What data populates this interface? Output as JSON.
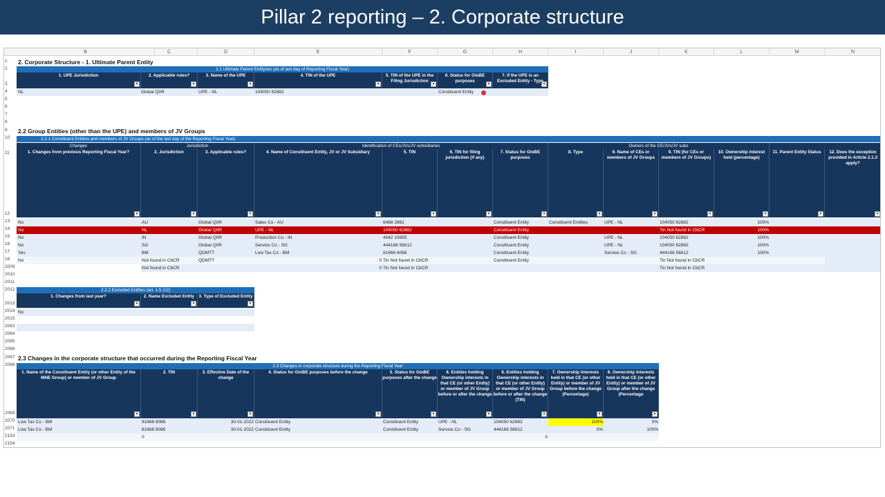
{
  "slide_title": "Pillar 2 reporting – 2. Corporate structure",
  "columns": [
    "B",
    "C",
    "D",
    "E",
    "F",
    "G",
    "H",
    "I",
    "J",
    "K",
    "L",
    "M",
    "N"
  ],
  "rows": [
    "1",
    "2",
    "3",
    "4",
    "5",
    "6",
    "7",
    "8",
    "9",
    "10",
    "11",
    "12",
    "13",
    "14",
    "15",
    "16",
    "17",
    "18",
    "2009",
    "2010",
    "2011",
    "2012",
    "2013",
    "2014",
    "2015",
    "2063",
    "2064",
    "2065",
    "2066",
    "2067",
    "2068",
    "2069",
    "2070",
    "2071",
    "2153",
    "2154"
  ],
  "sec1": {
    "title": "2. Corporate Structure - 1. Ultimate Parent Entity",
    "bar": "2.1 Ultimate Parent Entity/ies (as of last day of Reporting Fiscal Year)",
    "headers": [
      "1. UPE Jurisdiction",
      "2. Applicable rules?",
      "3. Name of the UPE",
      "4. TIN of the UPE",
      "5. TIN of the UPE in the Filing Jurisdiction",
      "6. Status for GloBE purposes",
      "7. If the UPE is an Excluded Entity - Type"
    ],
    "row4": [
      "NL",
      "Global QIIR",
      "UPE - NL",
      "104050 62882",
      "",
      "Constituent Entity",
      ""
    ]
  },
  "sec2": {
    "title": "2.2 Group Entities (other than the UPE) and members of JV Groups",
    "bar": "2.2.1 Constituent Entities and members of JV Groups (as of the last day of the Reporting Fiscal Year)",
    "groups": [
      "Changes",
      "Jurisdiction",
      "Identification of CEs/JVs/JV subsidiaries",
      "Owners of the CE/JVs/JV subs"
    ],
    "headers": [
      "1. Changes from previous Reporting Fiscal Year?",
      "2. Jurisdiction",
      "3. Applicable rules?",
      "4. Name of Constituent Entity, JV or JV Subsidiary",
      "5. TIN",
      "6. TIN for filing jurisdiction (if any)",
      "7. Status for GloBE purposes",
      "8. Type",
      "9. Name of CEs or members of JV Groups",
      "9. TIN (for CEs or members of JV Groups)",
      "10. Ownership interest held (percentage)",
      "11. Parent Entity Status",
      "12. Does the exception provided in Article 2.1.3 apply?"
    ],
    "data": [
      [
        "No",
        "AU",
        "Global QIIR",
        "Sales Co - AU",
        "6468 2862",
        "",
        "Constituent Entity",
        "Constituent Entities",
        "UPE - NL",
        "104050 62882",
        "100%"
      ],
      [
        "No",
        "NL",
        "Global QIIR",
        "UPE - NL",
        "104050 62882",
        "",
        "Constituent Entity",
        "",
        "",
        "Tin Not found in CbCR",
        "100%"
      ],
      [
        "No",
        "IN",
        "Global QIIR",
        "Production Co - IN",
        "4042 10655",
        "",
        "Constituent Entity",
        "",
        "UPE - NL",
        "104050 62882",
        "100%"
      ],
      [
        "No",
        "SG",
        "Global QIIR",
        "Service Co - SG",
        "444166 56612",
        "",
        "Constituent Entity",
        "",
        "UPE - NL",
        "104050 62882",
        "100%"
      ],
      [
        "Yes",
        "BM",
        "QDMTT",
        "Low Tax Co - BM",
        "81666 6086",
        "",
        "Constituent Entity",
        "",
        "Service Co - SG",
        "444166 56612",
        "100%"
      ],
      [
        "No",
        "Not found in CbCR",
        "QDMTT",
        "",
        "0",
        "Tin Not found in CbCR",
        "Constituent Entity",
        "",
        "",
        "Tin Not found in CbCR",
        ""
      ],
      [
        "",
        "Not found in CbCR",
        "",
        "",
        "0",
        "Tin Not found in CbCR",
        "",
        "",
        "",
        "Tin Not found in CbCR",
        ""
      ]
    ]
  },
  "sec3": {
    "bar": "2.2.2 Excluded Entities (art. 1.5.1/2)",
    "headers": [
      "1. Changes from last year?",
      "2. Name Excluded Entity",
      "3. Type of Excluded Entity"
    ],
    "row2014": "No"
  },
  "sec4": {
    "title": "2.3  Changes in the corporate structure that occurred during the Reporting Fiscal Year",
    "bar": "2.3 Changes in corporate structure during the Reporting Fiscal Year",
    "headers": [
      "1. Name of the Constituent Entity (or other Entity of the MNE Group) or member of JV Group",
      "2. TIN",
      "3. Effective Date of the change",
      "4. Status for GloBE purposes before the change",
      "5. Status for GloBE purposes after the change",
      "6. Entities holding Ownership interests in that CE (or other Entity) or member of JV Group before or after the change",
      "6. Entities holding Ownership interests in that CE (or other Entity) or member of JV Group before or after the change (TIN)",
      "7. Ownership Interests held in that CE (or other Entity) or member of JV Group before the change (Percentage)",
      "8. Ownership Interests held in that CE (or other Entity) or member of JV Group after the change (Percentage"
    ],
    "data": [
      [
        "Low Tax Co - BM",
        "81666 6086",
        "30-01-2022",
        "Constituent Entity",
        "Constituent Entity",
        "UPE - NL",
        "104050 62882",
        "100%",
        "0%"
      ],
      [
        "Low Tax Co - BM",
        "81666 6086",
        "30-01-2022",
        "Constituent Entity",
        "Constituent Entity",
        "Service Co - SG",
        "444166 56612",
        "0%",
        "100%"
      ]
    ],
    "row2153_c": "0",
    "row2153_j": "0"
  },
  "colors": {
    "title_bg": "#1d3e63",
    "header_bg": "#17365d",
    "bar_bg": "#1f6fb8",
    "highlight_row": "#c00000",
    "band": "#e4ecf7",
    "yellow": "#ffff00"
  }
}
